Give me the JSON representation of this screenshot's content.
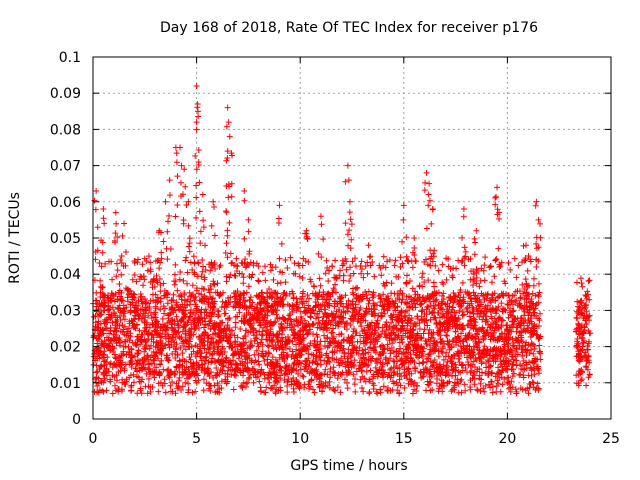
{
  "chart_data": {
    "type": "scatter",
    "title": "Day 168 of 2018, Rate Of TEC Index for receiver p176",
    "xlabel": "GPS time / hours",
    "ylabel": "ROTI / TECUs",
    "xlim": [
      0,
      25
    ],
    "ylim": [
      0,
      0.1
    ],
    "x_ticks": [
      0,
      5,
      10,
      15,
      20,
      25
    ],
    "x_tick_labels": [
      "0",
      "5",
      "10",
      "15",
      "20",
      "25"
    ],
    "y_ticks": [
      0,
      0.01,
      0.02,
      0.03,
      0.04,
      0.05,
      0.06,
      0.07,
      0.08,
      0.09,
      0.1
    ],
    "y_tick_labels": [
      "0",
      "0.01",
      "0.02",
      "0.03",
      "0.04",
      "0.05",
      "0.06",
      "0.07",
      "0.08",
      "0.09",
      "0.1"
    ],
    "grid": true,
    "marker": "plus",
    "color": "#ff0000",
    "series": [
      {
        "segments": [
          {
            "x_start": 0.0,
            "x_end": 21.6,
            "y_min": 0.007,
            "y_typical_low": 0.012,
            "y_typical_high": 0.035,
            "y_upper_band": 0.045
          },
          {
            "x_start": 23.3,
            "x_end": 24.0,
            "y_min": 0.009,
            "y_typical_low": 0.015,
            "y_typical_high": 0.033,
            "y_upper_band": 0.039
          }
        ],
        "peaks": [
          {
            "x": 0.15,
            "y": 0.063
          },
          {
            "x": 0.5,
            "y": 0.058
          },
          {
            "x": 1.1,
            "y": 0.057
          },
          {
            "x": 1.5,
            "y": 0.054
          },
          {
            "x": 2.7,
            "y": 0.045
          },
          {
            "x": 3.2,
            "y": 0.052
          },
          {
            "x": 3.5,
            "y": 0.06
          },
          {
            "x": 3.7,
            "y": 0.066
          },
          {
            "x": 4.0,
            "y": 0.075
          },
          {
            "x": 4.2,
            "y": 0.075
          },
          {
            "x": 4.4,
            "y": 0.069
          },
          {
            "x": 4.6,
            "y": 0.06
          },
          {
            "x": 5.0,
            "y": 0.092
          },
          {
            "x": 5.05,
            "y": 0.087
          },
          {
            "x": 5.0,
            "y": 0.082
          },
          {
            "x": 5.1,
            "y": 0.071
          },
          {
            "x": 5.3,
            "y": 0.062
          },
          {
            "x": 5.8,
            "y": 0.06
          },
          {
            "x": 6.5,
            "y": 0.086
          },
          {
            "x": 6.55,
            "y": 0.082
          },
          {
            "x": 6.6,
            "y": 0.078
          },
          {
            "x": 6.5,
            "y": 0.074
          },
          {
            "x": 6.7,
            "y": 0.065
          },
          {
            "x": 7.3,
            "y": 0.063
          },
          {
            "x": 7.5,
            "y": 0.055
          },
          {
            "x": 9.0,
            "y": 0.059
          },
          {
            "x": 10.3,
            "y": 0.052
          },
          {
            "x": 11.0,
            "y": 0.056
          },
          {
            "x": 12.3,
            "y": 0.07
          },
          {
            "x": 12.35,
            "y": 0.066
          },
          {
            "x": 12.4,
            "y": 0.06
          },
          {
            "x": 13.3,
            "y": 0.048
          },
          {
            "x": 15.0,
            "y": 0.059
          },
          {
            "x": 15.5,
            "y": 0.05
          },
          {
            "x": 16.1,
            "y": 0.068
          },
          {
            "x": 16.2,
            "y": 0.062
          },
          {
            "x": 16.4,
            "y": 0.058
          },
          {
            "x": 17.9,
            "y": 0.058
          },
          {
            "x": 18.5,
            "y": 0.052
          },
          {
            "x": 19.5,
            "y": 0.064
          },
          {
            "x": 19.6,
            "y": 0.057
          },
          {
            "x": 20.9,
            "y": 0.048
          },
          {
            "x": 21.4,
            "y": 0.06
          },
          {
            "x": 21.5,
            "y": 0.055
          }
        ]
      }
    ]
  }
}
